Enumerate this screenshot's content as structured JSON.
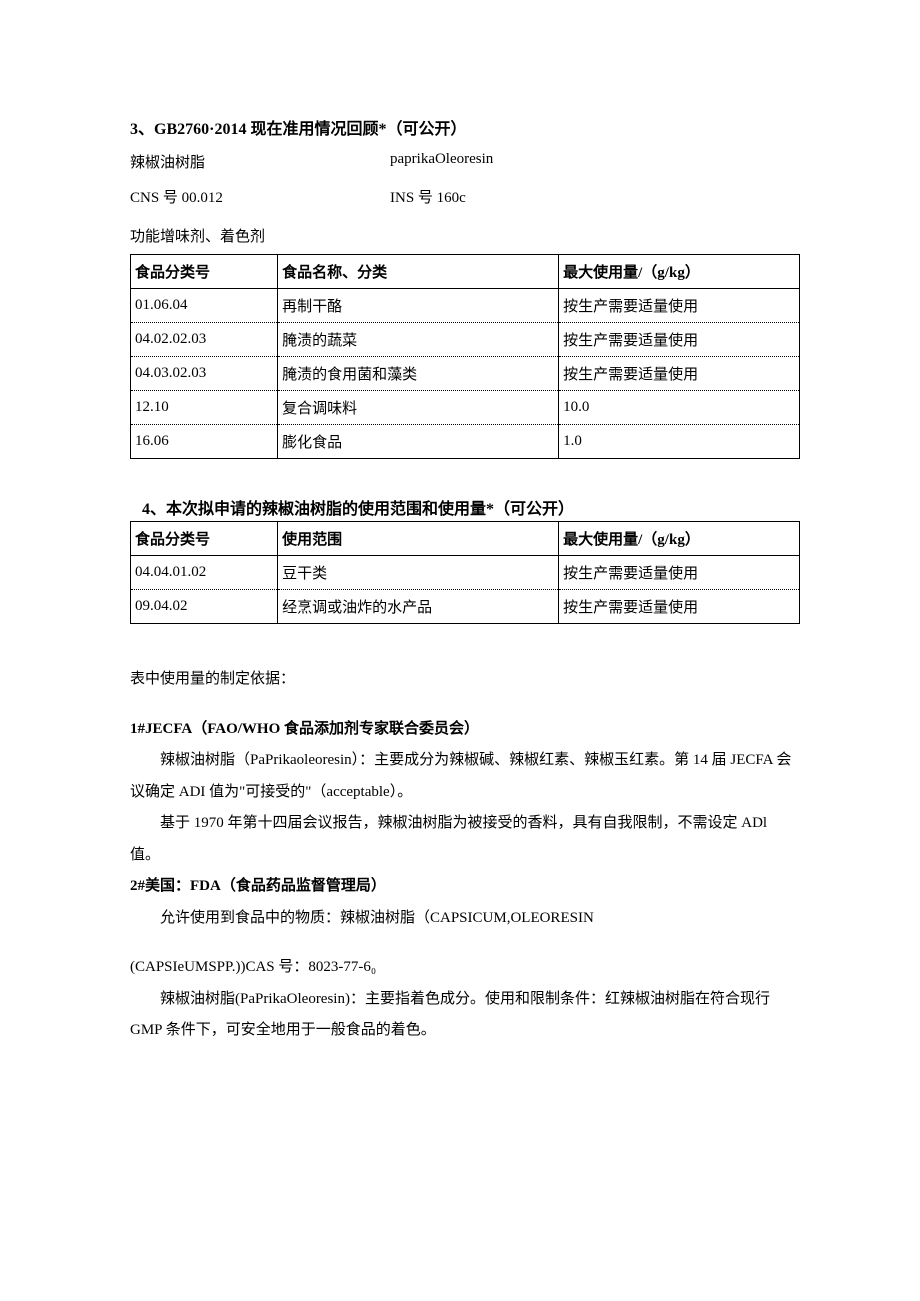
{
  "section3": {
    "title": "3、GB2760·2014 现在准用情况回顾*（可公开）",
    "name_cn": "辣椒油树脂",
    "name_en": "paprikaOleoresin",
    "cns_label": "CNS 号 00.012",
    "ins_label": "INS 号 160c",
    "func_line": "功能增味剂、着色剂",
    "table": {
      "header": [
        "食品分类号",
        "食品名称、分类",
        "最大使用量/（g/kg）"
      ],
      "rows": [
        [
          "01.06.04",
          "再制干酪",
          "按生产需要适量使用"
        ],
        [
          "04.02.02.03",
          "腌渍的蔬菜",
          "按生产需要适量使用"
        ],
        [
          "04.03.02.03",
          "腌渍的食用菌和藻类",
          "按生产需要适量使用"
        ],
        [
          "12.10",
          "复合调味料",
          "10.0"
        ],
        [
          "16.06",
          "膨化食品",
          "1.0"
        ]
      ]
    }
  },
  "section4": {
    "title": "4、本次拟申请的辣椒油树脂的使用范围和使用量*（可公开）",
    "table": {
      "header": [
        "食品分类号",
        "使用范围",
        "最大使用量/（g/kg）"
      ],
      "rows": [
        [
          "04.04.01.02",
          "豆干类",
          "按生产需要适量使用"
        ],
        [
          "09.04.02",
          "经烹调或油炸的水产品",
          "按生产需要适量使用"
        ]
      ]
    }
  },
  "body": {
    "basis_line": "表中使用量的制定依据：",
    "jecfa_title": "1#JECFA（FAO/WHO 食品添加剂专家联合委员会）",
    "jecfa_p1": "辣椒油树脂（PaPrikaoleoresin）：主要成分为辣椒碱、辣椒红素、辣椒玉红素。第 14 届 JECFA 会议确定 ADI 值为\"可接受的\"（acceptable）。",
    "jecfa_p2": "基于 1970 年第十四届会议报告，辣椒油树脂为被接受的香料，具有自我限制，不需设定 ADl 值。",
    "fda_title": "2#美国：FDA（食品药品监督管理局）",
    "fda_p1": "允许使用到食品中的物质：辣椒油树脂（CAPSICUM,OLEORESIN",
    "fda_p2": "(CAPSIeUMSPP.))CAS 号：8023-77-6₀",
    "fda_p3": "辣椒油树脂(PaPrikaOleoresin)：主要指着色成分。使用和限制条件：红辣椒油树脂在符合现行 GMP 条件下，可安全地用于一般食品的着色。"
  }
}
